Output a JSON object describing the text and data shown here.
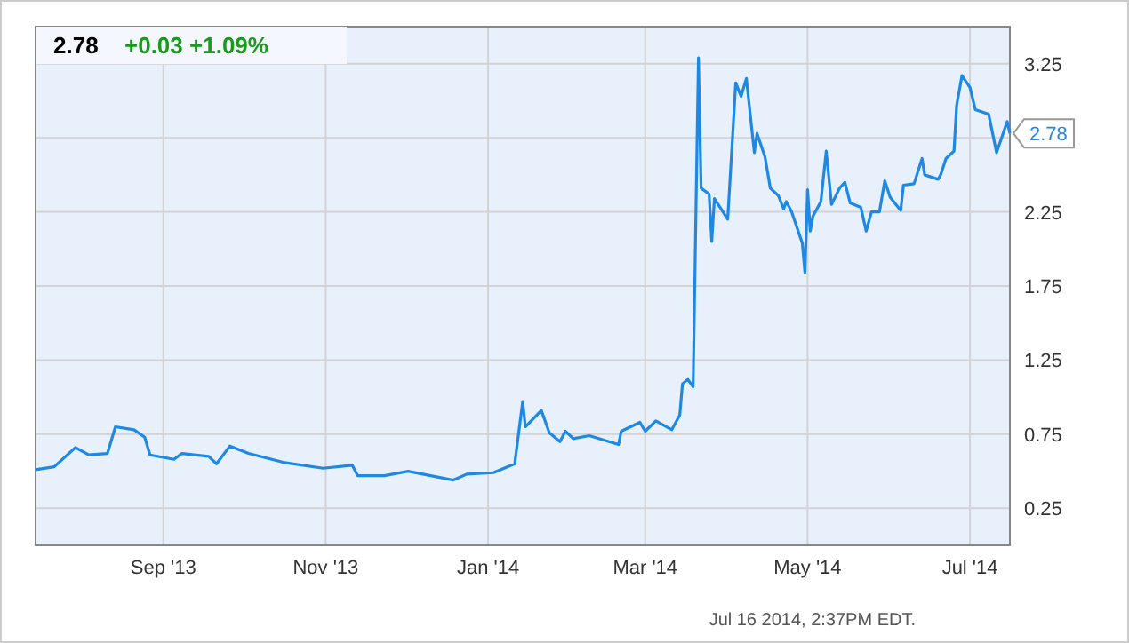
{
  "chart_data": {
    "type": "line",
    "title": "2.78",
    "subtitle": "+0.03 +1.09%",
    "x": [
      "2013-07-15",
      "2013-07-22",
      "2013-07-30",
      "2013-08-04",
      "2013-08-11",
      "2013-08-14",
      "2013-08-21",
      "2013-08-25",
      "2013-08-27",
      "2013-09-05",
      "2013-09-08",
      "2013-09-18",
      "2013-09-21",
      "2013-09-26",
      "2013-10-03",
      "2013-10-16",
      "2013-10-31",
      "2013-11-11",
      "2013-11-13",
      "2013-11-23",
      "2013-12-02",
      "2013-12-19",
      "2013-12-24",
      "2014-01-03",
      "2014-01-11",
      "2014-01-14",
      "2014-01-15",
      "2014-01-21",
      "2014-01-24",
      "2014-01-28",
      "2014-01-30",
      "2014-02-02",
      "2014-02-08",
      "2014-02-19",
      "2014-02-20",
      "2014-02-27",
      "2014-03-01",
      "2014-03-05",
      "2014-03-11",
      "2014-03-14",
      "2014-03-15",
      "2014-03-17",
      "2014-03-19",
      "2014-03-21",
      "2014-03-22",
      "2014-03-25",
      "2014-03-26",
      "2014-03-27",
      "2014-04-01",
      "2014-04-04",
      "2014-04-06",
      "2014-04-08",
      "2014-04-11",
      "2014-04-12",
      "2014-04-15",
      "2014-04-17",
      "2014-04-20",
      "2014-04-22",
      "2014-04-23",
      "2014-04-25",
      "2014-04-29",
      "2014-04-30",
      "2014-05-01",
      "2014-05-02",
      "2014-05-03",
      "2014-05-06",
      "2014-05-08",
      "2014-05-10",
      "2014-05-13",
      "2014-05-15",
      "2014-05-17",
      "2014-05-21",
      "2014-05-23",
      "2014-05-25",
      "2014-05-28",
      "2014-05-30",
      "2014-06-01",
      "2014-06-05",
      "2014-06-06",
      "2014-06-10",
      "2014-06-13",
      "2014-06-14",
      "2014-06-19",
      "2014-06-20",
      "2014-06-22",
      "2014-06-25",
      "2014-06-26",
      "2014-06-28",
      "2014-07-01",
      "2014-07-03",
      "2014-07-08",
      "2014-07-11",
      "2014-07-15",
      "2014-07-16"
    ],
    "series": [
      {
        "color": "#1e88e5",
        "values": [
          0.51,
          0.53,
          0.66,
          0.61,
          0.62,
          0.8,
          0.78,
          0.73,
          0.61,
          0.58,
          0.62,
          0.6,
          0.55,
          0.67,
          0.62,
          0.56,
          0.52,
          0.54,
          0.47,
          0.47,
          0.5,
          0.44,
          0.48,
          0.49,
          0.55,
          0.97,
          0.8,
          0.91,
          0.76,
          0.7,
          0.77,
          0.72,
          0.74,
          0.68,
          0.77,
          0.83,
          0.77,
          0.84,
          0.78,
          0.88,
          1.09,
          1.12,
          1.07,
          3.29,
          2.41,
          2.37,
          2.05,
          2.34,
          2.2,
          3.12,
          3.03,
          3.15,
          2.65,
          2.78,
          2.62,
          2.41,
          2.36,
          2.27,
          2.32,
          2.25,
          2.04,
          1.84,
          2.4,
          2.12,
          2.22,
          2.32,
          2.66,
          2.3,
          2.41,
          2.45,
          2.31,
          2.28,
          2.12,
          2.25,
          2.25,
          2.46,
          2.35,
          2.26,
          2.43,
          2.44,
          2.61,
          2.5,
          2.47,
          2.5,
          2.61,
          2.66,
          2.97,
          3.17,
          3.09,
          2.94,
          2.91,
          2.65,
          2.86,
          2.78
        ]
      }
    ],
    "xlim": [
      "2013-07-15",
      "2014-07-16"
    ],
    "xticks": [
      {
        "value": "2013-09-01",
        "label": "Sep '13"
      },
      {
        "value": "2013-11-01",
        "label": "Nov '13"
      },
      {
        "value": "2014-01-01",
        "label": "Jan '14"
      },
      {
        "value": "2014-03-01",
        "label": "Mar '14"
      },
      {
        "value": "2014-05-01",
        "label": "May '14"
      },
      {
        "value": "2014-07-01",
        "label": "Jul '14"
      }
    ],
    "ylim": [
      0,
      3.5
    ],
    "yticks": [
      0.25,
      0.75,
      1.25,
      1.75,
      2.25,
      {
        "value": 2.75,
        "label": null
      },
      3.25
    ],
    "grid": true,
    "annotations": [
      {
        "text": "2.78",
        "x": "2014-07-16",
        "y": 2.78
      },
      "Jul 16 2014, 2:37PM EDT."
    ]
  }
}
